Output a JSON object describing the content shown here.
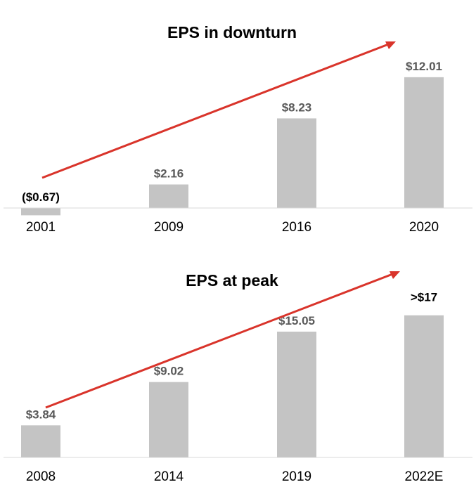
{
  "chart_data": [
    {
      "type": "bar",
      "title": "EPS in downturn",
      "categories": [
        "2001",
        "2009",
        "2016",
        "2020"
      ],
      "values": [
        -0.67,
        2.16,
        8.23,
        12.01
      ],
      "value_labels": [
        "($0.67)",
        "$2.16",
        "$8.23",
        "$12.01"
      ],
      "xlabel": "",
      "ylabel": "",
      "ylim": [
        -0.67,
        13.5
      ],
      "grid": false,
      "trend_arrow": true,
      "colors": {
        "bar": "#c4c4c4",
        "arrow": "#d9342b"
      }
    },
    {
      "type": "bar",
      "title": "EPS at peak",
      "categories": [
        "2008",
        "2014",
        "2019",
        "2022E"
      ],
      "values": [
        3.84,
        9.02,
        15.05,
        17
      ],
      "value_labels": [
        "$3.84",
        "$9.02",
        "$15.05",
        ">$17"
      ],
      "xlabel": "",
      "ylabel": "",
      "ylim": [
        0,
        19
      ],
      "grid": false,
      "trend_arrow": true,
      "colors": {
        "bar": "#c4c4c4",
        "arrow": "#d9342b"
      }
    }
  ]
}
